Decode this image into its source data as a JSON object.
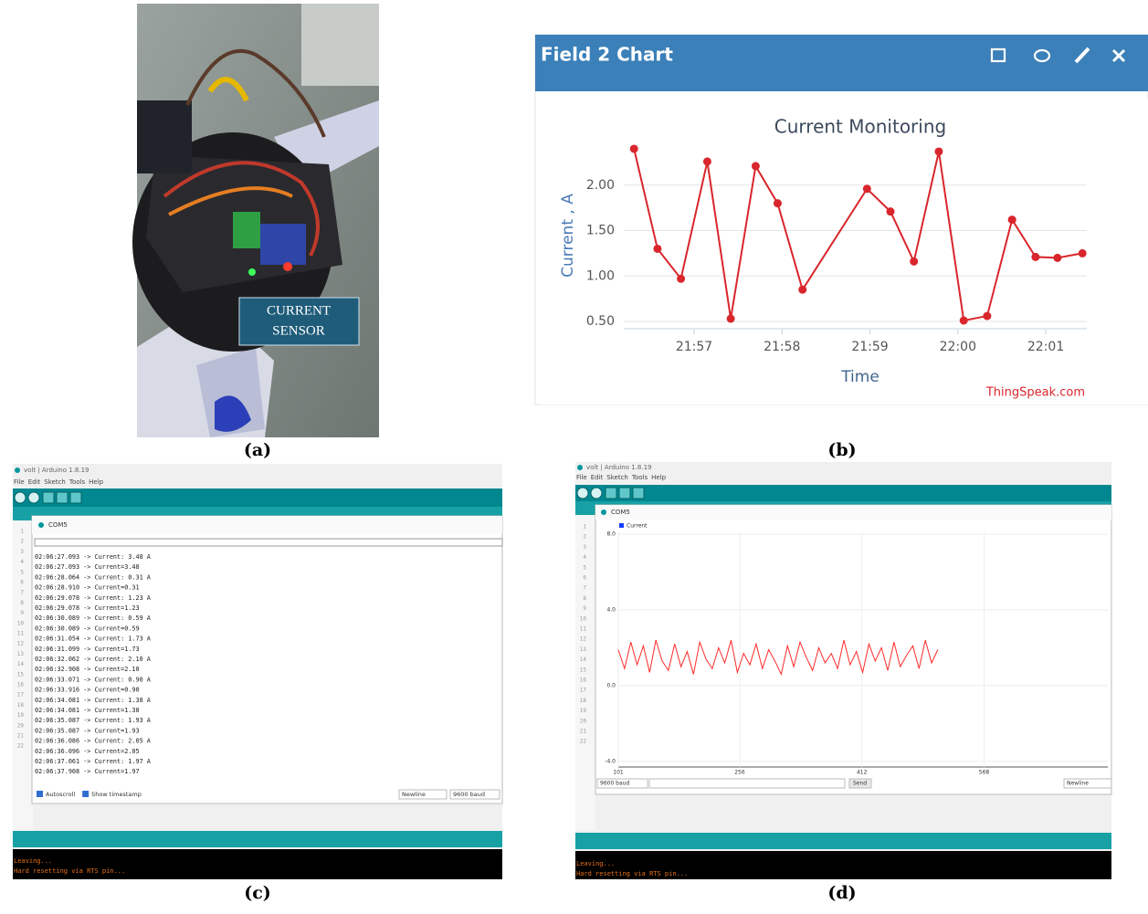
{
  "panel_a": {
    "caption": "(a)",
    "sensor_label": [
      "CURRENT",
      "SENSOR"
    ]
  },
  "panel_b": {
    "caption": "(b)",
    "window_title": "Field 2 Chart",
    "credit": "ThingSpeak.com",
    "chart_data": {
      "type": "line",
      "title": "Current Monitoring",
      "x_label": "Time",
      "y_label": "Current , A",
      "x": [
        "21:56:19",
        "21:56:35",
        "21:56:51",
        "21:57:09",
        "21:57:25",
        "21:57:42",
        "21:57:57",
        "21:58:14",
        "21:58:58",
        "21:59:14",
        "21:59:30",
        "21:59:47",
        "22:00:04",
        "22:00:20",
        "22:00:37",
        "22:00:53",
        "22:01:08",
        "22:01:25"
      ],
      "values": [
        2.4,
        1.3,
        0.97,
        2.26,
        0.53,
        2.21,
        1.8,
        0.85,
        1.96,
        1.71,
        1.16,
        2.37,
        0.51,
        0.56,
        1.62,
        1.21,
        1.2,
        1.25
      ],
      "color": "#d9262c",
      "xlim": [
        "21:56:12",
        "22:01:28"
      ],
      "xticks": [
        "21:57",
        "21:58",
        "21:59",
        "22:00",
        "22:01"
      ],
      "ylim": [
        0.42,
        2.43
      ],
      "yticks": [
        {
          "value": 0.5,
          "label": "0.50"
        },
        {
          "value": 1,
          "label": "1.00"
        },
        {
          "value": 1.5,
          "label": "1.50"
        },
        {
          "value": 2,
          "label": "2.00"
        }
      ],
      "grid": true
    }
  },
  "panel_c": {
    "caption": "(c)",
    "app_title": "volt | Arduino 1.8.19",
    "menu": [
      "File",
      "Edit",
      "Sketch",
      "Tools",
      "Help"
    ],
    "gutter": [
      1,
      2,
      3,
      4,
      5,
      6,
      7,
      8,
      9,
      10,
      11,
      12,
      13,
      14,
      15,
      16,
      17,
      18,
      19,
      20,
      21,
      22
    ],
    "window_title": "COM5",
    "lines": [
      "02:06:27.093 -> Current: 3.48 A",
      "02:06:27.093 -> Current=3.48",
      "02:06:28.064 -> Current: 0.31 A",
      "02:06:28.910 -> Current=0.31",
      "02:06:29.078 -> Current: 1.23 A",
      "02:06:29.078 -> Current=1.23",
      "02:06:30.089 -> Current: 0.59 A",
      "02:06:30.089 -> Current=0.59",
      "02:06:31.054 -> Current: 1.73 A",
      "02:06:31.099 -> Current=1.73",
      "02:06:32.062 -> Current: 2.10 A",
      "02:06:32.908 -> Current=2.10",
      "02:06:33.071 -> Current: 0.90 A",
      "02:06:33.916 -> Current=0.90",
      "02:06:34.081 -> Current: 1.38 A",
      "02:06:34.081 -> Current=1.38",
      "02:06:35.087 -> Current: 1.93 A",
      "02:06:35.087 -> Current=1.93",
      "02:06:36.086 -> Current: 2.05 A",
      "02:06:36.096 -> Current=2.05",
      "02:06:37.061 -> Current: 1.97 A",
      "02:06:37.908 -> Current=1.97"
    ],
    "options": [
      "Autoscroll",
      "Show timestamp"
    ],
    "line_ending": "Newline",
    "baud": "9600 baud",
    "console": [
      "Leaving...",
      "Hard resetting via RTS pin..."
    ]
  },
  "panel_d": {
    "caption": "(d)",
    "app_title": "volt | Arduino 1.8.19",
    "menu": [
      "File",
      "Edit",
      "Sketch",
      "Tools",
      "Help"
    ],
    "gutter": [
      1,
      2,
      3,
      4,
      5,
      6,
      7,
      8,
      9,
      10,
      11,
      12,
      13,
      14,
      15,
      16,
      17,
      18,
      19,
      20,
      21,
      22
    ],
    "window_title": "COM5",
    "chart_data": {
      "type": "line",
      "x": [
        101,
        109,
        117,
        125,
        133,
        141,
        149,
        157,
        165,
        173,
        181,
        189,
        197,
        205,
        213,
        221,
        229,
        237,
        245,
        253,
        261,
        269,
        277,
        285,
        293,
        301,
        309,
        317,
        325,
        333,
        341,
        349,
        357,
        365,
        373,
        381,
        389,
        397,
        405,
        413,
        421,
        429,
        437,
        445,
        453,
        461,
        469,
        477,
        485,
        493,
        501,
        509
      ],
      "series": [
        {
          "name": "Current",
          "color": "#ff2a2a",
          "values": [
            1.9,
            0.9,
            2.3,
            1.1,
            2.1,
            0.7,
            2.4,
            1.3,
            0.8,
            2.2,
            1.0,
            1.8,
            0.6,
            2.3,
            1.4,
            0.9,
            2.0,
            1.2,
            2.4,
            0.7,
            1.7,
            1.1,
            2.2,
            0.9,
            1.9,
            1.3,
            0.6,
            2.1,
            1.0,
            2.3,
            1.5,
            0.8,
            2.0,
            1.2,
            1.7,
            0.9,
            2.4,
            1.1,
            1.8,
            0.7,
            2.2,
            1.3,
            2.0,
            0.8,
            2.3,
            1.0,
            1.6,
            2.1,
            0.9,
            2.4,
            1.2,
            1.9
          ]
        }
      ],
      "xlim": [
        101,
        726
      ],
      "xticks": [
        101,
        256,
        412,
        568
      ],
      "ylim": [
        -4.3,
        8.1
      ],
      "yticks": [
        {
          "value": 8,
          "label": "8.0"
        },
        {
          "value": 4,
          "label": "4.0"
        },
        {
          "value": 0,
          "label": "0.0"
        },
        {
          "value": -4,
          "label": "-4.0"
        }
      ],
      "grid": true
    },
    "baud": "9600 baud",
    "send": "Send",
    "line_ending": "Newline",
    "console": [
      "Leaving...",
      "Hard resetting via RTS pin..."
    ]
  }
}
